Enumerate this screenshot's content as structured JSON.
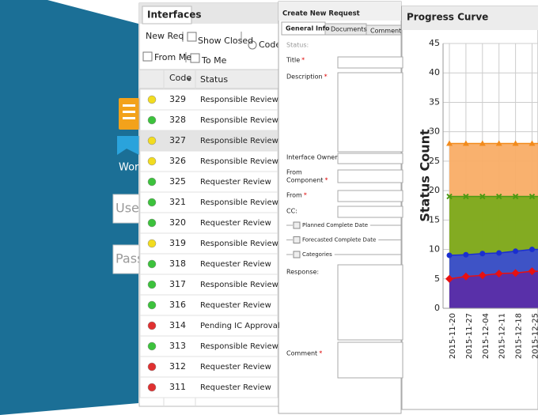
{
  "login": {
    "brand": "Wor",
    "username_placeholder": "User",
    "password_placeholder": "Pass"
  },
  "interfaces": {
    "tab": "Interfaces",
    "new_request": "New Req",
    "show_closed": "Show Closed",
    "code_option": "Code",
    "from_me": "From Me",
    "to_me": "To Me",
    "columns": [
      "Code",
      "Status"
    ],
    "rows": [
      {
        "code": "329",
        "status": "Responsible Review",
        "light": "#f2dc1f"
      },
      {
        "code": "328",
        "status": "Responsible Review",
        "light": "#3cc23c"
      },
      {
        "code": "327",
        "status": "Responsible Review",
        "light": "#f2dc1f"
      },
      {
        "code": "326",
        "status": "Responsible Review",
        "light": "#f2dc1f"
      },
      {
        "code": "325",
        "status": "Requester Review",
        "light": "#3cc23c"
      },
      {
        "code": "321",
        "status": "Responsible Review",
        "light": "#3cc23c"
      },
      {
        "code": "320",
        "status": "Requester Review",
        "light": "#3cc23c"
      },
      {
        "code": "319",
        "status": "Responsible Review",
        "light": "#f2dc1f"
      },
      {
        "code": "318",
        "status": "Requester Review",
        "light": "#3cc23c"
      },
      {
        "code": "317",
        "status": "Responsible Review",
        "light": "#3cc23c"
      },
      {
        "code": "316",
        "status": "Requester Review",
        "light": "#3cc23c"
      },
      {
        "code": "314",
        "status": "Pending IC Approval",
        "light": "#e03030"
      },
      {
        "code": "313",
        "status": "Responsible Review",
        "light": "#3cc23c"
      },
      {
        "code": "312",
        "status": "Requester Review",
        "light": "#e03030"
      },
      {
        "code": "311",
        "status": "Requester Review",
        "light": "#e03030"
      }
    ]
  },
  "request_form": {
    "title": "Create New Request",
    "tabs": [
      "General Info",
      "Documents",
      "Comments"
    ],
    "required_mark": "*",
    "fields": [
      {
        "label": [
          "Status:"
        ],
        "required": false
      },
      {
        "label": [
          "Title"
        ],
        "required": true
      },
      {
        "label": [
          "Description"
        ],
        "required": true
      },
      {
        "label": [
          "Interface Owner"
        ],
        "required": true
      },
      {
        "label": [
          "From",
          "Component"
        ],
        "required": true
      },
      {
        "label": [
          "From"
        ],
        "required": true
      },
      {
        "label": [
          "CC:"
        ],
        "required": false
      },
      {
        "label": [
          "Response:"
        ],
        "required": false
      },
      {
        "label": [
          "Comment"
        ],
        "required": true
      }
    ],
    "sections": [
      "Planned Complete Date",
      "Forecasted Complete Date",
      "Categories"
    ]
  },
  "chart_data": {
    "type": "area",
    "title": "Progress Curve",
    "y_label": "Status Count",
    "categories": [
      "2015-11-20",
      "2015-11-27",
      "2015-12-04",
      "2015-12-11",
      "2015-12-18",
      "2015-12-25"
    ],
    "ylim": [
      0,
      45
    ],
    "yticks": [
      0,
      5,
      10,
      15,
      20,
      25,
      30,
      35,
      40,
      45
    ],
    "grid": true,
    "series": [
      {
        "color": "#f28b1c",
        "fill": "#f9ad66",
        "marker": "triangle",
        "values": [
          28,
          28,
          28,
          28,
          28,
          28
        ]
      },
      {
        "color": "#4c9a12",
        "fill": "#7cab1e",
        "marker": "cross",
        "values": [
          19,
          19,
          19,
          19,
          19,
          19
        ]
      },
      {
        "color": "#1a2fd0",
        "fill": "#3a4ed0",
        "marker": "circle",
        "values": [
          9,
          9.1,
          9.3,
          9.4,
          9.7,
          10
        ]
      },
      {
        "color": "#e81010",
        "fill": "#5b2ea8",
        "marker": "diamond",
        "values": [
          5,
          5.4,
          5.6,
          5.9,
          6,
          6.3
        ]
      }
    ]
  }
}
